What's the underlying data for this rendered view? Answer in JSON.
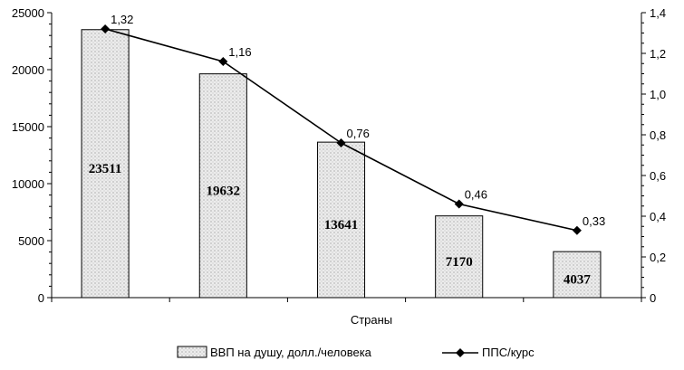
{
  "chart_data": {
    "type": "bar",
    "categories": [
      "",
      "",
      "",
      "",
      ""
    ],
    "xlabel": "Страны",
    "series": [
      {
        "name": "ВВП на душу, долл./человека",
        "type": "bar",
        "axis": "left",
        "values": [
          23511,
          19632,
          13641,
          7170,
          4037
        ],
        "labels": [
          "23511",
          "19632",
          "13641",
          "7170",
          "4037"
        ]
      },
      {
        "name": "ППС/курс",
        "type": "line",
        "axis": "right",
        "values": [
          1.32,
          1.16,
          0.76,
          0.46,
          0.33
        ],
        "labels": [
          "1,32",
          "1,16",
          "0,76",
          "0,46",
          "0,33"
        ]
      }
    ],
    "y_left": {
      "range": [
        0,
        25000
      ],
      "ticks": [
        "0",
        "5000",
        "10000",
        "15000",
        "20000",
        "25000"
      ]
    },
    "y_right": {
      "range": [
        0,
        1.4
      ],
      "ticks": [
        "0",
        "0,2",
        "0,4",
        "0,6",
        "0,8",
        "1,0",
        "1,2",
        "1,4"
      ]
    },
    "legend_position": "bottom",
    "grid": false,
    "colors": {
      "bar_fill": "#ececec",
      "bar_dots": "#8a8a8a",
      "line": "#000000"
    }
  }
}
